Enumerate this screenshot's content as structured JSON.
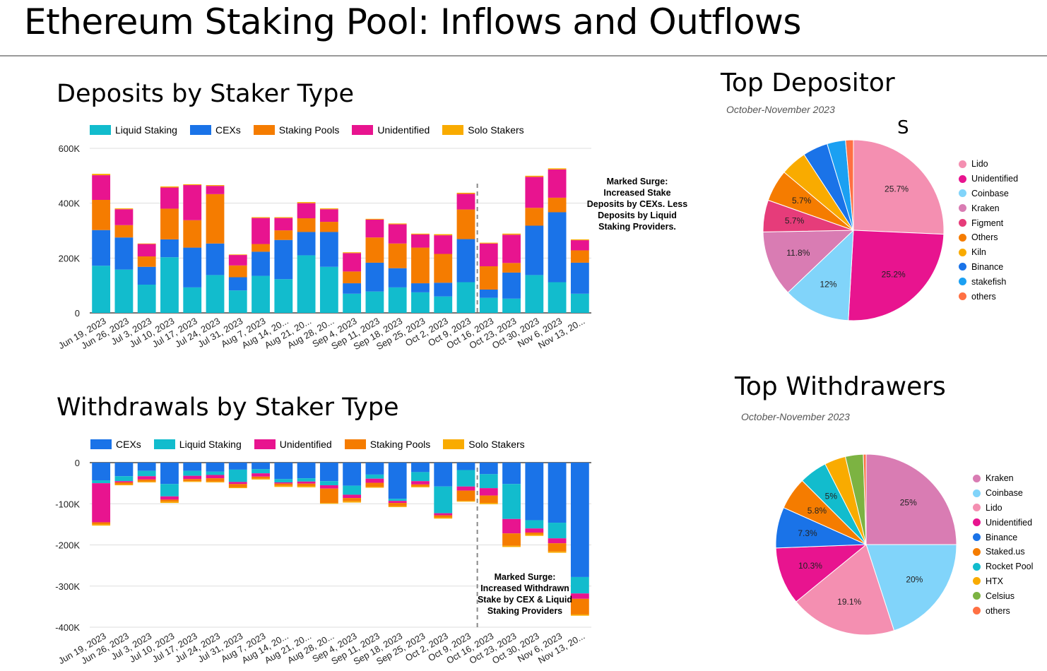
{
  "page": {
    "title": "Ethereum Staking Pool: Inflows and Outflows",
    "stray_label": "S"
  },
  "deposits_legend": [
    {
      "label": "Liquid Staking",
      "color": "#12bccd"
    },
    {
      "label": "CEXs",
      "color": "#1a73e8"
    },
    {
      "label": "Staking Pools",
      "color": "#f57c00"
    },
    {
      "label": "Unidentified",
      "color": "#e8148f"
    },
    {
      "label": "Solo Stakers",
      "color": "#f9ab00"
    }
  ],
  "withdrawals_legend": [
    {
      "label": "CEXs",
      "color": "#1a73e8"
    },
    {
      "label": "Liquid Staking",
      "color": "#12bccd"
    },
    {
      "label": "Unidentified",
      "color": "#e8148f"
    },
    {
      "label": "Staking Pools",
      "color": "#f57c00"
    },
    {
      "label": "Solo Stakers",
      "color": "#f9ab00"
    }
  ],
  "deposits_annotation": "Marked Surge:\nIncreased Stake\nDeposits by CEXs. Less\nDeposits by Liquid\nStaking Providers.",
  "withdrawals_annotation": "Marked Surge:\nIncreased Withdrawn\nStake by CEX & Liquid\nStaking Providers",
  "top_depositor": {
    "title": "Top Depositor",
    "subtitle": "October-November 2023",
    "legend": [
      "Lido",
      "Unidentified",
      "Coinbase",
      "Kraken",
      "Figment",
      "Others",
      "Kiln",
      "Binance",
      "stakefish",
      "others"
    ]
  },
  "top_withdrawers": {
    "title": "Top Withdrawers",
    "subtitle": "October-November 2023",
    "legend": [
      "Kraken",
      "Coinbase",
      "Lido",
      "Unidentified",
      "Binance",
      "Staked.us",
      "Rocket Pool",
      "HTX",
      "Celsius",
      "others"
    ]
  },
  "chart_data": [
    {
      "type": "bar",
      "stacked": true,
      "title": "Deposits by Staker Type",
      "categories": [
        "Jun 19, 2023",
        "Jun 26, 2023",
        "Jul 3, 2023",
        "Jul 10, 2023",
        "Jul 17, 2023",
        "Jul 24, 2023",
        "Jul 31, 2023",
        "Aug 7, 2023",
        "Aug 14, 20...",
        "Aug 21, 20...",
        "Aug 28, 20...",
        "Sep 4, 2023",
        "Sep 11, 2023",
        "Sep 18, 2023",
        "Sep 25, 2023",
        "Oct 2, 2023",
        "Oct 9, 2023",
        "Oct 16, 2023",
        "Oct 23, 2023",
        "Oct 30, 2023",
        "Nov 6, 2023",
        "Nov 13, 20..."
      ],
      "ylim": [
        0,
        600000
      ],
      "yticks": [
        0,
        200000,
        400000,
        600000
      ],
      "ytick_labels": [
        "0",
        "200K",
        "400K",
        "600K"
      ],
      "series": [
        {
          "name": "Liquid Staking",
          "color": "#12bccd",
          "values": [
            172000,
            158000,
            103000,
            203000,
            93000,
            138000,
            82000,
            135000,
            123000,
            210000,
            168000,
            70000,
            78000,
            93000,
            75000,
            60000,
            112000,
            55000,
            52000,
            138000,
            112000,
            70000
          ]
        },
        {
          "name": "CEXs",
          "color": "#1a73e8",
          "values": [
            130000,
            117000,
            65000,
            65000,
            145000,
            115000,
            48000,
            88000,
            143000,
            85000,
            127000,
            38000,
            105000,
            70000,
            33000,
            50000,
            157000,
            30000,
            95000,
            180000,
            255000,
            113000
          ]
        },
        {
          "name": "Staking Pools",
          "color": "#f57c00",
          "values": [
            110000,
            45000,
            38000,
            112000,
            100000,
            180000,
            43000,
            28000,
            35000,
            50000,
            37000,
            43000,
            92000,
            90000,
            130000,
            105000,
            108000,
            85000,
            35000,
            65000,
            53000,
            45000
          ]
        },
        {
          "name": "Unidentified",
          "color": "#e8148f",
          "values": [
            90000,
            58000,
            45000,
            77000,
            128000,
            30000,
            38000,
            95000,
            45000,
            55000,
            46000,
            67000,
            65000,
            70000,
            48000,
            68000,
            57000,
            83000,
            103000,
            113000,
            103000,
            37000
          ]
        },
        {
          "name": "Solo Stakers",
          "color": "#f9ab00",
          "values": [
            5000,
            3000,
            2000,
            4000,
            3000,
            3000,
            2000,
            3000,
            3000,
            4000,
            3000,
            3000,
            3000,
            3000,
            3000,
            4000,
            4000,
            3000,
            4000,
            4000,
            4000,
            3000
          ]
        }
      ],
      "annotation": "Marked Surge: Increased Stake Deposits by CEXs. Less Deposits by Liquid Staking Providers.",
      "marker_after_index": 16
    },
    {
      "type": "bar",
      "stacked": true,
      "title": "Withdrawals by Staker Type",
      "categories": [
        "Jun 19, 2023",
        "Jun 26, 2023",
        "Jul 3, 2023",
        "Jul 10, 2023",
        "Jul 17, 2023",
        "Jul 24, 2023",
        "Jul 31, 2023",
        "Aug 7, 2023",
        "Aug 14, 20...",
        "Aug 21, 20...",
        "Aug 28, 20...",
        "Sep 4, 2023",
        "Sep 11, 2023",
        "Sep 18, 2023",
        "Sep 25, 2023",
        "Oct 2, 2023",
        "Oct 9, 2023",
        "Oct 16, 2023",
        "Oct 23, 2023",
        "Oct 30, 2023",
        "Nov 6, 2023",
        "Nov 13, 20..."
      ],
      "ylim": [
        -400000,
        0
      ],
      "yticks": [
        0,
        -100000,
        -200000,
        -300000,
        -400000
      ],
      "ytick_labels": [
        "0",
        "-100K",
        "-200K",
        "-300K",
        "-400K"
      ],
      "series": [
        {
          "name": "CEXs",
          "color": "#1a73e8",
          "values": [
            -43000,
            -33000,
            -20000,
            -52000,
            -20000,
            -22000,
            -17000,
            -16000,
            -40000,
            -38000,
            -45000,
            -56000,
            -29000,
            -88000,
            -23000,
            -58000,
            -18000,
            -28000,
            -52000,
            -140000,
            -146000,
            -278000
          ]
        },
        {
          "name": "Liquid Staking",
          "color": "#12bccd",
          "values": [
            -7000,
            -12000,
            -13000,
            -30000,
            -12000,
            -8000,
            -30000,
            -10000,
            -8000,
            -8000,
            -10000,
            -22000,
            -10000,
            -5000,
            -22000,
            -65000,
            -40000,
            -34000,
            -85000,
            -20000,
            -38000,
            -40000
          ]
        },
        {
          "name": "Unidentified",
          "color": "#e8148f",
          "values": [
            -95000,
            -3000,
            -8000,
            -8000,
            -8000,
            -8000,
            -5000,
            -8000,
            -3000,
            -5000,
            -8000,
            -8000,
            -10000,
            -5000,
            -8000,
            -5000,
            -10000,
            -18000,
            -35000,
            -10000,
            -12000,
            -13000
          ]
        },
        {
          "name": "Staking Pools",
          "color": "#f57c00",
          "values": [
            -5000,
            -5000,
            -5000,
            -5000,
            -5000,
            -8000,
            -8000,
            -5000,
            -5000,
            -6000,
            -35000,
            -8000,
            -10000,
            -8000,
            -5000,
            -5000,
            -25000,
            -18000,
            -30000,
            -5000,
            -20000,
            -38000
          ]
        },
        {
          "name": "Solo Stakers",
          "color": "#f9ab00",
          "values": [
            -3000,
            -2000,
            -2000,
            -3000,
            -2000,
            -2000,
            -2000,
            -2000,
            -3000,
            -3000,
            -2000,
            -3000,
            -2000,
            -2000,
            -2000,
            -3000,
            -2000,
            -3000,
            -3000,
            -3000,
            -3000,
            -3000
          ]
        }
      ],
      "annotation": "Marked Surge: Increased Withdrawn Stake by CEX & Liquid Staking Providers",
      "marker_after_index": 16
    },
    {
      "type": "pie",
      "title": "Top Depositor",
      "subtitle": "October-November 2023",
      "slices": [
        {
          "label": "Lido",
          "value": 25.7,
          "color": "#f48fb1",
          "display": "25.7%"
        },
        {
          "label": "Unidentified",
          "value": 25.2,
          "color": "#e8148f",
          "display": "25.2%"
        },
        {
          "label": "Coinbase",
          "value": 12,
          "color": "#81d4fa",
          "display": "12%"
        },
        {
          "label": "Kraken",
          "value": 11.8,
          "color": "#d97cb3",
          "display": "11.8%"
        },
        {
          "label": "Figment",
          "value": 5.7,
          "color": "#e63c7a",
          "display": "5.7%"
        },
        {
          "label": "Others",
          "value": 5.7,
          "color": "#f57c00",
          "display": "5.7%"
        },
        {
          "label": "Kiln",
          "value": 4.7,
          "color": "#f9ab00",
          "display": ""
        },
        {
          "label": "Binance",
          "value": 4.5,
          "color": "#1a73e8",
          "display": ""
        },
        {
          "label": "stakefish",
          "value": 3.3,
          "color": "#1ba0f2",
          "display": ""
        },
        {
          "label": "others",
          "value": 1.4,
          "color": "#ff7043",
          "display": ""
        }
      ]
    },
    {
      "type": "pie",
      "title": "Top Withdrawers",
      "subtitle": "October-November 2023",
      "slices": [
        {
          "label": "Kraken",
          "value": 25,
          "color": "#d97cb3",
          "display": "25%"
        },
        {
          "label": "Coinbase",
          "value": 20,
          "color": "#81d4fa",
          "display": "20%"
        },
        {
          "label": "Lido",
          "value": 19.1,
          "color": "#f48fb1",
          "display": "19.1%"
        },
        {
          "label": "Unidentified",
          "value": 10.3,
          "color": "#e8148f",
          "display": "10.3%"
        },
        {
          "label": "Binance",
          "value": 7.3,
          "color": "#1a73e8",
          "display": "7.3%"
        },
        {
          "label": "Staked.us",
          "value": 5.8,
          "color": "#f57c00",
          "display": "5.8%"
        },
        {
          "label": "Rocket Pool",
          "value": 5,
          "color": "#12bccd",
          "display": "5%"
        },
        {
          "label": "HTX",
          "value": 3.8,
          "color": "#f9ab00",
          "display": ""
        },
        {
          "label": "Celsius",
          "value": 3.2,
          "color": "#7cb342",
          "display": ""
        },
        {
          "label": "others",
          "value": 0.5,
          "color": "#ff7043",
          "display": ""
        }
      ]
    }
  ]
}
